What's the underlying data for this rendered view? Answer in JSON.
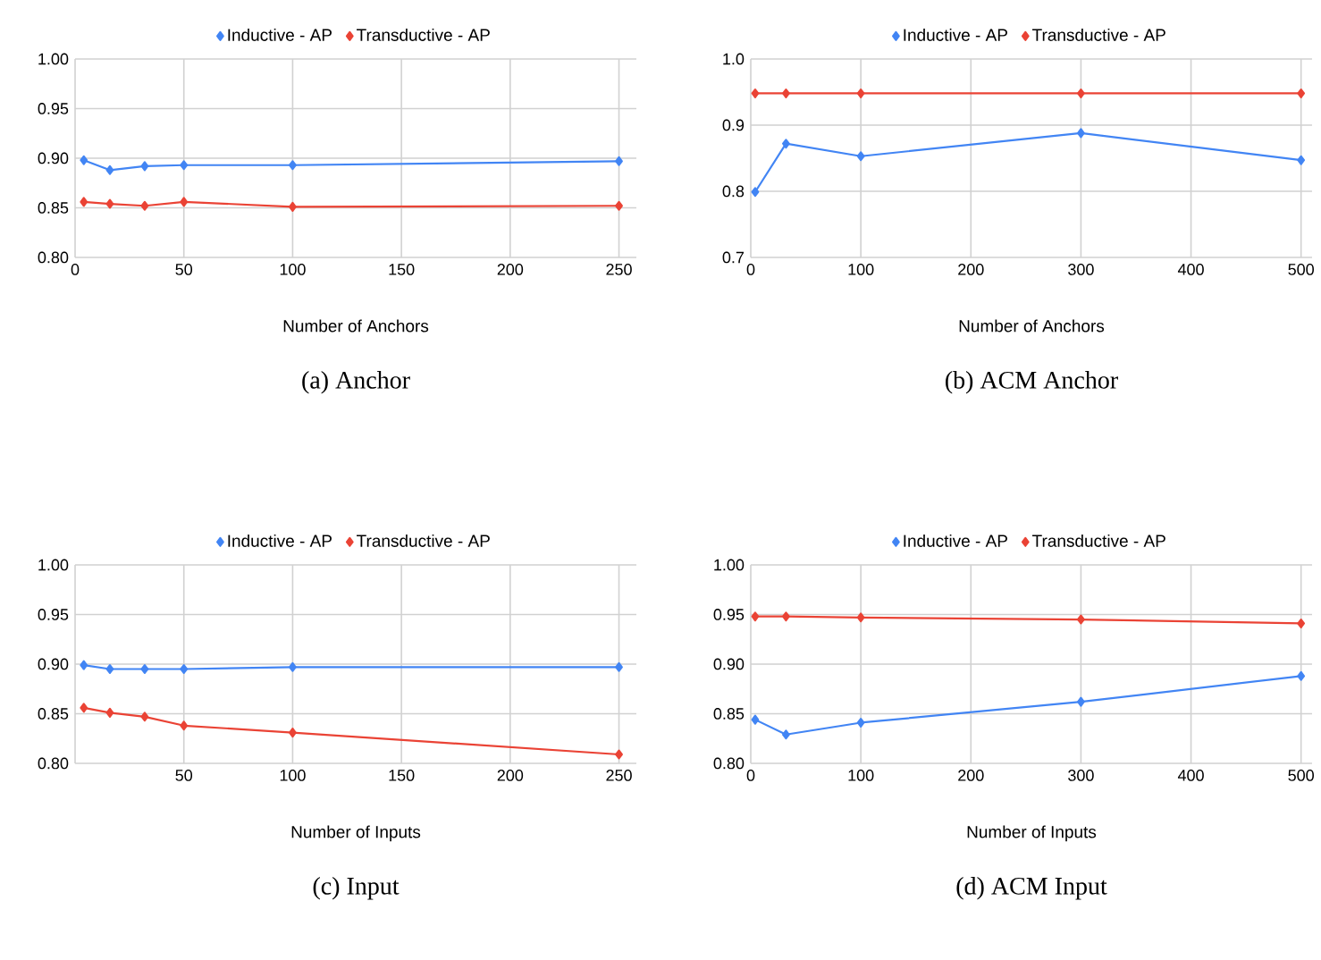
{
  "chart_data": [
    {
      "type": "line",
      "xlabel": "Number of Anchors",
      "annotations": [
        "(a) Anchor"
      ],
      "x": [
        4,
        16,
        32,
        50,
        100,
        250
      ],
      "xlim": [
        0,
        258
      ],
      "xticks": [
        0,
        50,
        100,
        150,
        200,
        250
      ],
      "ylim": [
        0.8,
        1.0
      ],
      "yticks": [
        {
          "value": 0.8,
          "label": "0.80"
        },
        {
          "value": 0.85,
          "label": "0.85"
        },
        {
          "value": 0.9,
          "label": "0.90"
        },
        {
          "value": 0.95,
          "label": "0.95"
        },
        {
          "value": 1.0,
          "label": "1.00"
        }
      ],
      "grid": true,
      "legend": "top",
      "marker": "diamond",
      "line_style": "solid",
      "series": [
        {
          "name": "Inductive - AP",
          "color": "#4285f4",
          "values": [
            0.898,
            0.888,
            0.892,
            0.893,
            0.893,
            0.897
          ]
        },
        {
          "name": "Transductive - AP",
          "color": "#ea4335",
          "values": [
            0.856,
            0.854,
            0.852,
            0.856,
            0.851,
            0.852
          ]
        }
      ]
    },
    {
      "type": "line",
      "xlabel": "Number of Anchors",
      "annotations": [
        "(b) ACM Anchor"
      ],
      "x": [
        4,
        32,
        100,
        300,
        500
      ],
      "xlim": [
        0,
        510
      ],
      "xticks": [
        0,
        100,
        200,
        300,
        400,
        500
      ],
      "ylim": [
        0.7,
        1.0
      ],
      "yticks": [
        0.7,
        0.8,
        0.9,
        {
          "value": 1.0,
          "label": "1.0"
        }
      ],
      "grid": true,
      "legend": "top",
      "marker": "diamond",
      "line_style": "solid",
      "series": [
        {
          "name": "Inductive - AP",
          "color": "#4285f4",
          "values": [
            0.799,
            0.872,
            0.853,
            0.888,
            0.847
          ]
        },
        {
          "name": "Transductive - AP",
          "color": "#ea4335",
          "values": [
            0.948,
            0.948,
            0.948,
            0.948,
            0.948
          ]
        }
      ]
    },
    {
      "type": "line",
      "xlabel": "Number of Inputs",
      "annotations": [
        "(c) Input"
      ],
      "x": [
        4,
        16,
        32,
        50,
        100,
        250
      ],
      "xlim": [
        0,
        258
      ],
      "xticks": [
        {
          "value": 0,
          "label": null
        },
        50,
        100,
        150,
        200,
        250
      ],
      "ylim": [
        0.8,
        1.0
      ],
      "yticks": [
        {
          "value": 0.8,
          "label": "0.80"
        },
        {
          "value": 0.85,
          "label": "0.85"
        },
        {
          "value": 0.9,
          "label": "0.90"
        },
        {
          "value": 0.95,
          "label": "0.95"
        },
        {
          "value": 1.0,
          "label": "1.00"
        }
      ],
      "grid": true,
      "legend": "top",
      "marker": "diamond",
      "line_style": "solid",
      "series": [
        {
          "name": "Inductive - AP",
          "color": "#4285f4",
          "values": [
            0.899,
            0.895,
            0.895,
            0.895,
            0.897,
            0.897
          ]
        },
        {
          "name": "Transductive - AP",
          "color": "#ea4335",
          "values": [
            0.856,
            0.851,
            0.847,
            0.838,
            0.831,
            0.809
          ]
        }
      ]
    },
    {
      "type": "line",
      "xlabel": "Number of Inputs",
      "annotations": [
        "(d) ACM Input"
      ],
      "x": [
        4,
        32,
        100,
        300,
        500
      ],
      "xlim": [
        0,
        510
      ],
      "xticks": [
        0,
        100,
        200,
        300,
        400,
        500
      ],
      "ylim": [
        0.8,
        1.0
      ],
      "yticks": [
        {
          "value": 0.8,
          "label": "0.80"
        },
        {
          "value": 0.85,
          "label": "0.85"
        },
        {
          "value": 0.9,
          "label": "0.90"
        },
        {
          "value": 0.95,
          "label": "0.95"
        },
        {
          "value": 1.0,
          "label": "1.00"
        }
      ],
      "grid": true,
      "legend": "top",
      "marker": "diamond",
      "line_style": "solid",
      "series": [
        {
          "name": "Inductive - AP",
          "color": "#4285f4",
          "values": [
            0.844,
            0.829,
            0.841,
            0.862,
            0.888
          ]
        },
        {
          "name": "Transductive - AP",
          "color": "#ea4335",
          "values": [
            0.948,
            0.948,
            0.947,
            0.945,
            0.941
          ]
        }
      ]
    }
  ]
}
